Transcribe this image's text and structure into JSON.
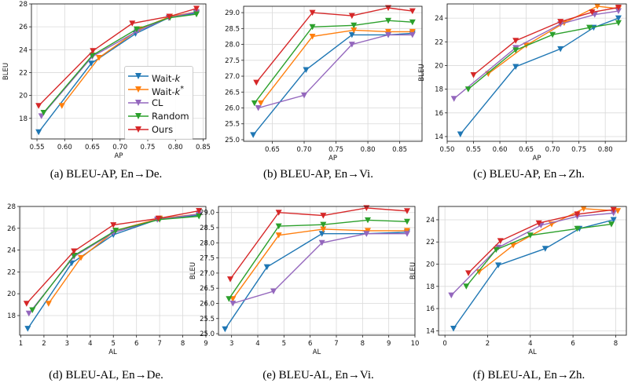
{
  "colors": {
    "wait_k": "#1f77b4",
    "wait_k_star": "#ff7f0e",
    "cl": "#9467bd",
    "random": "#2ca02c",
    "ours": "#d62728"
  },
  "legend": {
    "entries": [
      {
        "key": "wait_k",
        "prefix": "Wait-",
        "italic": "k",
        "suffix": ""
      },
      {
        "key": "wait_k_star",
        "prefix": "Wait-",
        "italic": "k",
        "suffix": "*"
      },
      {
        "key": "cl",
        "prefix": "CL",
        "italic": "",
        "suffix": ""
      },
      {
        "key": "random",
        "prefix": "Random",
        "italic": "",
        "suffix": ""
      },
      {
        "key": "ours",
        "prefix": "Ours",
        "italic": "",
        "suffix": ""
      }
    ]
  },
  "captions": {
    "a": "(a) BLEU-AP, En→De.",
    "b": "(b) BLEU-AP, En→Vi.",
    "c": "(c) BLEU-AP, En→Zh.",
    "d": "(d) BLEU-AL, En→De.",
    "e": "(e) BLEU-AL, En→Vi.",
    "f": "(f) BLEU-AL, En→Zh."
  },
  "chart_data": [
    {
      "id": "a",
      "type": "line",
      "xlabel": "AP",
      "ylabel": "BLEU",
      "xlim": [
        0.54,
        0.855
      ],
      "ylim": [
        16.2,
        28.0
      ],
      "xticks": [
        0.55,
        0.6,
        0.65,
        0.7,
        0.75,
        0.8,
        0.85
      ],
      "xtick_labels": [
        "0.55",
        "0.60",
        "0.65",
        "0.70",
        "0.75",
        "0.80",
        "0.85"
      ],
      "yticks": [
        18,
        20,
        22,
        24,
        26,
        28
      ],
      "ytick_labels": [
        "18",
        "20",
        "22",
        "24",
        "26",
        "28"
      ],
      "series": [
        {
          "key": "wait_k",
          "x": [
            0.553,
            0.648,
            0.728,
            0.788,
            0.838
          ],
          "y": [
            16.8,
            22.8,
            25.4,
            26.8,
            27.2
          ]
        },
        {
          "key": "wait_k_star",
          "x": [
            0.595,
            0.662,
            0.735,
            0.79,
            0.838
          ],
          "y": [
            19.1,
            23.3,
            25.8,
            26.9,
            27.3
          ]
        },
        {
          "key": "cl",
          "x": [
            0.558,
            0.65,
            0.73,
            0.788,
            0.838
          ],
          "y": [
            18.2,
            23.4,
            25.6,
            26.8,
            27.3
          ]
        },
        {
          "key": "random",
          "x": [
            0.562,
            0.65,
            0.73,
            0.79,
            0.838
          ],
          "y": [
            18.5,
            23.5,
            25.8,
            26.8,
            27.1
          ]
        },
        {
          "key": "ours",
          "x": [
            0.553,
            0.651,
            0.722,
            0.789,
            0.838
          ],
          "y": [
            19.1,
            23.9,
            26.3,
            26.9,
            27.6
          ]
        }
      ]
    },
    {
      "id": "b",
      "type": "line",
      "xlabel": "AP",
      "ylabel": "",
      "xlim": [
        0.605,
        0.885
      ],
      "ylim": [
        24.95,
        29.2
      ],
      "xticks": [
        0.65,
        0.7,
        0.75,
        0.8,
        0.85
      ],
      "xtick_labels": [
        "0.65",
        "0.70",
        "0.75",
        "0.80",
        "0.85"
      ],
      "yticks": [
        25.0,
        25.5,
        26.0,
        26.5,
        27.0,
        27.5,
        28.0,
        28.5,
        29.0
      ],
      "ytick_labels": [
        "25.0",
        "25.5",
        "26.0",
        "26.5",
        "27.0",
        "27.5",
        "28.0",
        "28.5",
        "29.0"
      ],
      "series": [
        {
          "key": "wait_k",
          "x": [
            0.62,
            0.703,
            0.775,
            0.832,
            0.87
          ],
          "y": [
            25.15,
            27.2,
            28.3,
            28.3,
            28.35
          ]
        },
        {
          "key": "wait_k_star",
          "x": [
            0.632,
            0.713,
            0.778,
            0.832,
            0.87
          ],
          "y": [
            26.15,
            28.25,
            28.45,
            28.4,
            28.4
          ]
        },
        {
          "key": "cl",
          "x": [
            0.628,
            0.7,
            0.775,
            0.832,
            0.87
          ],
          "y": [
            26.0,
            26.4,
            28.0,
            28.3,
            28.3
          ]
        },
        {
          "key": "random",
          "x": [
            0.622,
            0.713,
            0.778,
            0.832,
            0.87
          ],
          "y": [
            26.15,
            28.55,
            28.6,
            28.75,
            28.7
          ]
        },
        {
          "key": "ours",
          "x": [
            0.625,
            0.713,
            0.775,
            0.832,
            0.87
          ],
          "y": [
            26.8,
            29.0,
            28.9,
            29.15,
            29.05
          ]
        }
      ]
    },
    {
      "id": "c",
      "type": "line",
      "xlabel": "AP",
      "ylabel": "BLEU",
      "xlim": [
        0.5,
        0.84
      ],
      "ylim": [
        13.6,
        25.2
      ],
      "xticks": [
        0.5,
        0.55,
        0.6,
        0.65,
        0.7,
        0.75,
        0.8
      ],
      "xtick_labels": [
        "0.50",
        "0.55",
        "0.60",
        "0.65",
        "0.70",
        "0.75",
        "0.80"
      ],
      "yticks": [
        14,
        16,
        18,
        20,
        22,
        24
      ],
      "ytick_labels": [
        "14",
        "16",
        "18",
        "20",
        "22",
        "24"
      ],
      "series": [
        {
          "key": "wait_k",
          "x": [
            0.525,
            0.63,
            0.715,
            0.778,
            0.825
          ],
          "y": [
            14.2,
            19.9,
            21.4,
            23.2,
            24.0
          ]
        },
        {
          "key": "wait_k_star",
          "x": [
            0.578,
            0.65,
            0.722,
            0.785,
            0.825
          ],
          "y": [
            19.3,
            21.7,
            23.6,
            25.0,
            24.8
          ]
        },
        {
          "key": "cl",
          "x": [
            0.513,
            0.63,
            0.715,
            0.78,
            0.825
          ],
          "y": [
            17.2,
            21.5,
            23.5,
            24.3,
            24.6
          ]
        },
        {
          "key": "random",
          "x": [
            0.54,
            0.63,
            0.7,
            0.77,
            0.825
          ],
          "y": [
            18.0,
            21.3,
            22.6,
            23.2,
            23.6
          ]
        },
        {
          "key": "ours",
          "x": [
            0.55,
            0.63,
            0.715,
            0.775,
            0.825
          ],
          "y": [
            19.2,
            22.1,
            23.7,
            24.5,
            24.9
          ]
        }
      ]
    },
    {
      "id": "d",
      "type": "line",
      "xlabel": "AL",
      "ylabel": "BLEU",
      "xlim": [
        0.95,
        9.0
      ],
      "ylim": [
        16.2,
        28.0
      ],
      "xticks": [
        1,
        2,
        3,
        4,
        5,
        6,
        7,
        8,
        9
      ],
      "xtick_labels": [
        "1",
        "2",
        "3",
        "4",
        "5",
        "6",
        "7",
        "8",
        "9"
      ],
      "yticks": [
        18,
        20,
        22,
        24,
        26,
        28
      ],
      "ytick_labels": [
        "18",
        "20",
        "22",
        "24",
        "26",
        "28"
      ],
      "series": [
        {
          "key": "wait_k",
          "x": [
            1.3,
            3.2,
            5.0,
            6.9,
            8.7
          ],
          "y": [
            16.8,
            22.8,
            25.4,
            26.8,
            27.2
          ]
        },
        {
          "key": "wait_k_star",
          "x": [
            2.2,
            3.6,
            5.1,
            7.0,
            8.7
          ],
          "y": [
            19.1,
            23.3,
            25.8,
            26.9,
            27.3
          ]
        },
        {
          "key": "cl",
          "x": [
            1.35,
            3.3,
            5.0,
            6.9,
            8.7
          ],
          "y": [
            18.2,
            23.4,
            25.6,
            26.8,
            27.3
          ]
        },
        {
          "key": "random",
          "x": [
            1.5,
            3.3,
            5.1,
            7.0,
            8.7
          ],
          "y": [
            18.5,
            23.5,
            25.8,
            26.8,
            27.1
          ]
        },
        {
          "key": "ours",
          "x": [
            1.25,
            3.3,
            5.0,
            6.95,
            8.7
          ],
          "y": [
            19.1,
            23.9,
            26.3,
            26.9,
            27.6
          ]
        }
      ]
    },
    {
      "id": "e",
      "type": "line",
      "xlabel": "AL",
      "ylabel": "BLEU",
      "xlim": [
        2.5,
        10.0
      ],
      "ylim": [
        24.95,
        29.2
      ],
      "xticks": [
        3,
        4,
        5,
        6,
        7,
        8,
        9,
        10
      ],
      "xtick_labels": [
        "3",
        "4",
        "5",
        "6",
        "7",
        "8",
        "9",
        "10"
      ],
      "yticks": [
        25.0,
        25.5,
        26.0,
        26.5,
        27.0,
        27.5,
        28.0,
        28.5,
        29.0
      ],
      "ytick_labels": [
        "25.0",
        "25.5",
        "26.0",
        "26.5",
        "27.0",
        "27.5",
        "28.0",
        "28.5",
        "29.0"
      ],
      "series": [
        {
          "key": "wait_k",
          "x": [
            2.75,
            4.35,
            6.45,
            8.15,
            9.7
          ],
          "y": [
            25.15,
            27.2,
            28.3,
            28.3,
            28.35
          ]
        },
        {
          "key": "wait_k_star",
          "x": [
            3.05,
            4.8,
            6.5,
            8.2,
            9.7
          ],
          "y": [
            26.15,
            28.25,
            28.45,
            28.4,
            28.4
          ]
        },
        {
          "key": "cl",
          "x": [
            3.05,
            4.6,
            6.45,
            8.15,
            9.7
          ],
          "y": [
            26.0,
            26.4,
            28.0,
            28.3,
            28.3
          ]
        },
        {
          "key": "random",
          "x": [
            2.9,
            4.8,
            6.5,
            8.2,
            9.7
          ],
          "y": [
            26.15,
            28.55,
            28.6,
            28.75,
            28.7
          ]
        },
        {
          "key": "ours",
          "x": [
            2.95,
            4.8,
            6.5,
            8.15,
            9.7
          ],
          "y": [
            26.8,
            29.0,
            28.9,
            29.15,
            29.05
          ]
        }
      ]
    },
    {
      "id": "f",
      "type": "line",
      "xlabel": "AL",
      "ylabel": "BLEU",
      "xlim": [
        -0.3,
        8.5
      ],
      "ylim": [
        13.6,
        25.2
      ],
      "xticks": [
        0,
        2,
        4,
        6,
        8
      ],
      "xtick_labels": [
        "0",
        "2",
        "4",
        "6",
        "8"
      ],
      "yticks": [
        14,
        16,
        18,
        20,
        22,
        24
      ],
      "ytick_labels": [
        "14",
        "16",
        "18",
        "20",
        "22",
        "24"
      ],
      "series": [
        {
          "key": "wait_k",
          "x": [
            0.4,
            2.5,
            4.7,
            6.3,
            7.9
          ],
          "y": [
            14.2,
            19.9,
            21.4,
            23.2,
            24.0
          ]
        },
        {
          "key": "wait_k_star",
          "x": [
            1.6,
            3.2,
            5.0,
            6.5,
            8.1
          ],
          "y": [
            19.3,
            21.7,
            23.6,
            25.0,
            24.8
          ]
        },
        {
          "key": "cl",
          "x": [
            0.3,
            2.5,
            4.5,
            6.2,
            7.9
          ],
          "y": [
            17.2,
            21.5,
            23.5,
            24.3,
            24.6
          ]
        },
        {
          "key": "random",
          "x": [
            1.0,
            2.4,
            4.0,
            6.2,
            7.8
          ],
          "y": [
            18.0,
            21.3,
            22.6,
            23.2,
            23.6
          ]
        },
        {
          "key": "ours",
          "x": [
            1.1,
            2.6,
            4.4,
            6.2,
            7.9
          ],
          "y": [
            19.2,
            22.1,
            23.7,
            24.5,
            24.9
          ]
        }
      ]
    }
  ]
}
